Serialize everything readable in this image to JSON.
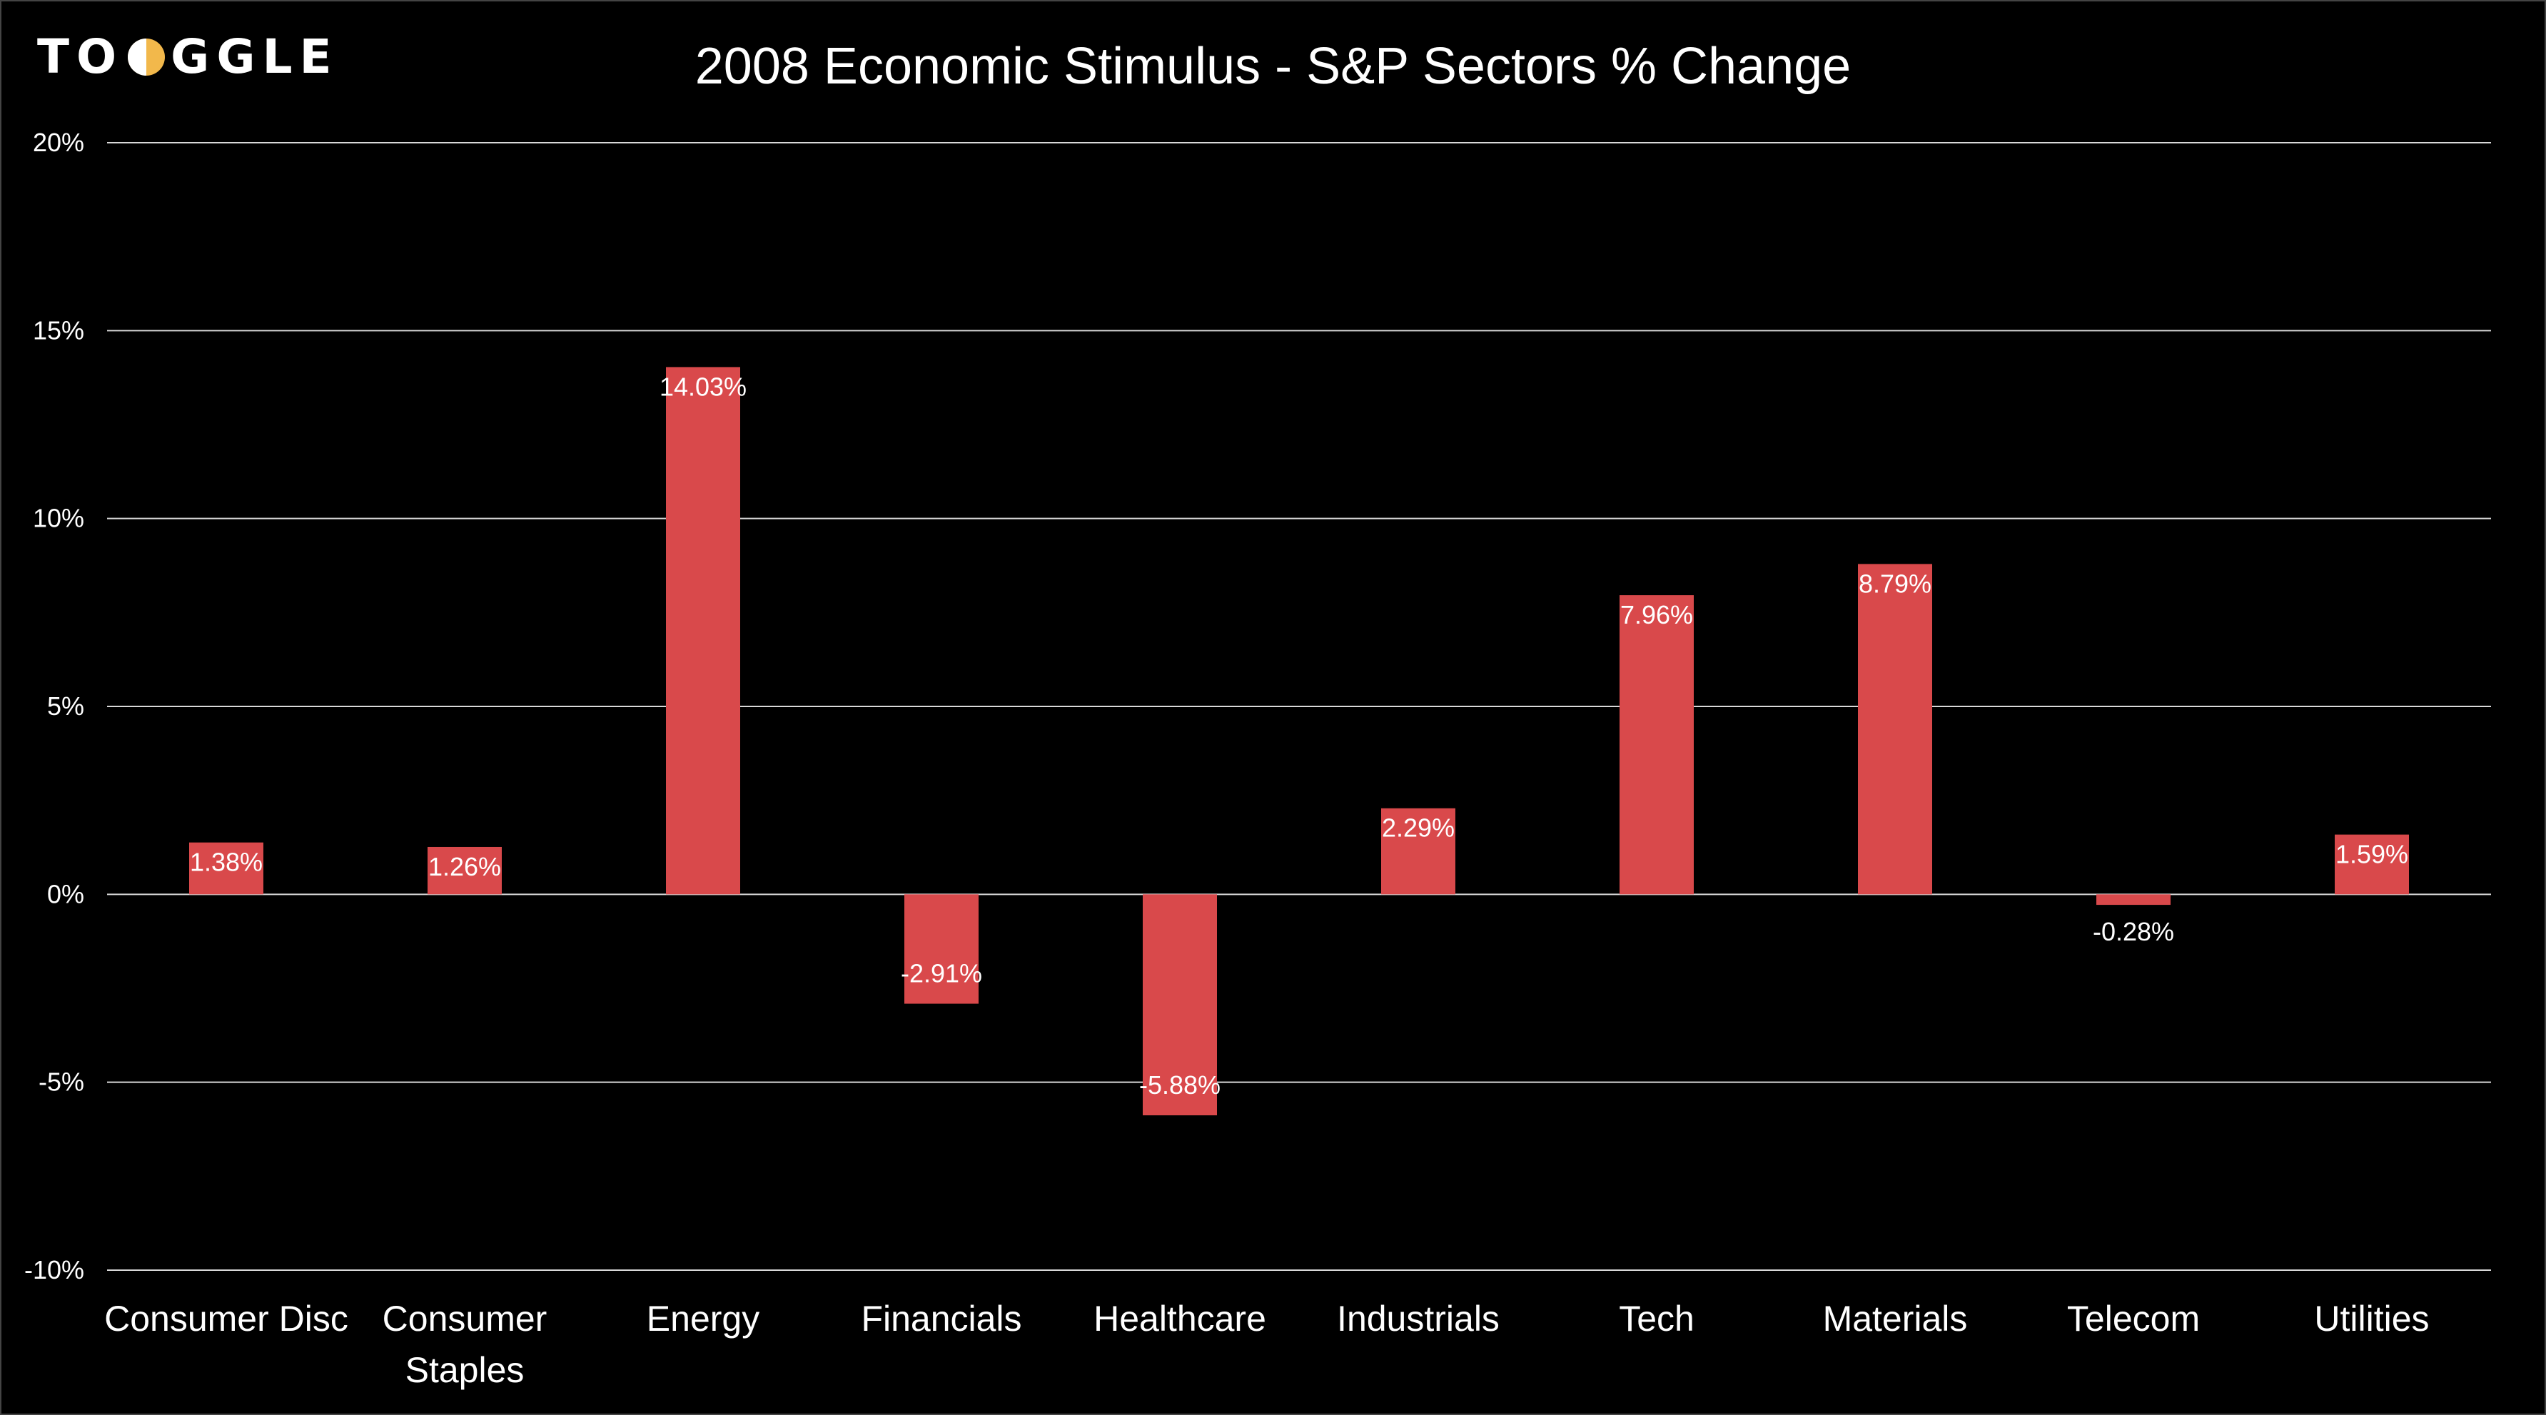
{
  "brand": {
    "logo_left": "TO",
    "logo_right": "GGLE",
    "logo_mark": "half-moon-o",
    "accent": "#f2b84b"
  },
  "chart_data": {
    "type": "bar",
    "title": "2008 Economic Stimulus - S&P Sectors % Change",
    "categories": [
      [
        "Consumer Disc"
      ],
      [
        "Consumer",
        "Staples"
      ],
      [
        "Energy"
      ],
      [
        "Financials"
      ],
      [
        "Healthcare"
      ],
      [
        "Industrials"
      ],
      [
        "Tech"
      ],
      [
        "Materials"
      ],
      [
        "Telecom"
      ],
      [
        "Utilities"
      ]
    ],
    "values": [
      1.38,
      1.26,
      14.03,
      -2.91,
      -5.88,
      2.29,
      7.96,
      8.79,
      -0.28,
      1.59
    ],
    "data_labels": [
      "1.38%",
      "1.26%",
      "14.03%",
      "-2.91%",
      "-5.88%",
      "2.29%",
      "7.96%",
      "8.79%",
      "-0.28%",
      "1.59%"
    ],
    "ylim": [
      -10,
      20
    ],
    "yticks": [
      20,
      15,
      10,
      5,
      0,
      -5,
      -10
    ],
    "ytick_labels": [
      "20%",
      "15%",
      "10%",
      "5%",
      "0%",
      "-5%",
      "-10%"
    ],
    "grid": true,
    "bar_color": "#d9494b",
    "background": "#000000",
    "text_color": "#ffffff"
  }
}
